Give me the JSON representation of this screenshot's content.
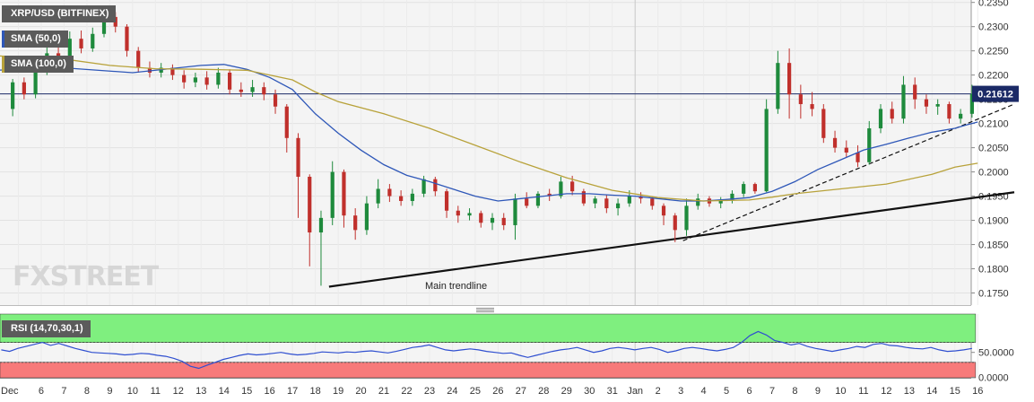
{
  "chart_data": {
    "type": "candlestick",
    "title": "XRP/USD (BITFINEX)",
    "ylim": [
      0.1725,
      0.2355
    ],
    "y_ticks": [
      "0.2350",
      "0.2300",
      "0.2250",
      "0.2200",
      "0.2150",
      "0.2100",
      "0.2050",
      "0.2000",
      "0.1950",
      "0.1900",
      "0.1850",
      "0.1800",
      "0.1750"
    ],
    "current_price": 0.21612,
    "current_price_label": "0.21612",
    "x_tick_labels": [
      "Dec",
      "6",
      "7",
      "8",
      "9",
      "10",
      "11",
      "12",
      "13",
      "14",
      "15",
      "16",
      "17",
      "18",
      "19",
      "20",
      "21",
      "22",
      "23",
      "24",
      "25",
      "26",
      "27",
      "28",
      "29",
      "30",
      "31",
      "Jan",
      "2",
      "3",
      "4",
      "5",
      "6",
      "7",
      "8",
      "9",
      "10",
      "11",
      "12",
      "13",
      "14",
      "15",
      "16"
    ],
    "x_dates": [
      "2019-12-05",
      "2019-12-06",
      "2019-12-07",
      "2019-12-08",
      "2019-12-09",
      "2019-12-10",
      "2019-12-11",
      "2019-12-12",
      "2019-12-13",
      "2019-12-14",
      "2019-12-15",
      "2019-12-16",
      "2019-12-17",
      "2019-12-18",
      "2019-12-19",
      "2019-12-20",
      "2019-12-21",
      "2019-12-22",
      "2019-12-23",
      "2019-12-24",
      "2019-12-25",
      "2019-12-26",
      "2019-12-27",
      "2019-12-28",
      "2019-12-29",
      "2019-12-30",
      "2019-12-31",
      "2020-01-01",
      "2020-01-02",
      "2020-01-03",
      "2020-01-04",
      "2020-01-05",
      "2020-01-06",
      "2020-01-07",
      "2020-01-08",
      "2020-01-09",
      "2020-01-10",
      "2020-01-11",
      "2020-01-12",
      "2020-01-13",
      "2020-01-14",
      "2020-01-15",
      "2020-01-16"
    ],
    "candles": [
      {
        "day": -0.25,
        "open": 0.213,
        "close": 0.2185,
        "high": 0.2192,
        "low": 0.2115
      },
      {
        "day": 0.25,
        "open": 0.2185,
        "close": 0.216,
        "high": 0.2195,
        "low": 0.215
      },
      {
        "day": 0.75,
        "open": 0.216,
        "close": 0.221,
        "high": 0.224,
        "low": 0.2152
      },
      {
        "day": 1.25,
        "open": 0.221,
        "close": 0.2245,
        "high": 0.2265,
        "low": 0.22
      },
      {
        "day": 1.75,
        "open": 0.2245,
        "close": 0.2225,
        "high": 0.2268,
        "low": 0.2215
      },
      {
        "day": 2.25,
        "open": 0.2225,
        "close": 0.2275,
        "high": 0.229,
        "low": 0.2218
      },
      {
        "day": 2.75,
        "open": 0.2275,
        "close": 0.2255,
        "high": 0.2292,
        "low": 0.2245
      },
      {
        "day": 3.25,
        "open": 0.2255,
        "close": 0.2285,
        "high": 0.2298,
        "low": 0.2248
      },
      {
        "day": 3.75,
        "open": 0.2285,
        "close": 0.232,
        "high": 0.234,
        "low": 0.2278
      },
      {
        "day": 4.25,
        "open": 0.232,
        "close": 0.23,
        "high": 0.233,
        "low": 0.2288
      },
      {
        "day": 4.75,
        "open": 0.23,
        "close": 0.225,
        "high": 0.2305,
        "low": 0.2238
      },
      {
        "day": 5.25,
        "open": 0.225,
        "close": 0.2215,
        "high": 0.2258,
        "low": 0.2205
      },
      {
        "day": 5.75,
        "open": 0.2215,
        "close": 0.2205,
        "high": 0.2228,
        "low": 0.2195
      },
      {
        "day": 6.25,
        "open": 0.2205,
        "close": 0.2215,
        "high": 0.2225,
        "low": 0.2195
      },
      {
        "day": 6.75,
        "open": 0.2215,
        "close": 0.22,
        "high": 0.2222,
        "low": 0.219
      },
      {
        "day": 7.25,
        "open": 0.22,
        "close": 0.2185,
        "high": 0.221,
        "low": 0.2172
      },
      {
        "day": 7.75,
        "open": 0.2185,
        "close": 0.2195,
        "high": 0.2205,
        "low": 0.2175
      },
      {
        "day": 8.25,
        "open": 0.2195,
        "close": 0.218,
        "high": 0.2208,
        "low": 0.217
      },
      {
        "day": 8.75,
        "open": 0.218,
        "close": 0.2205,
        "high": 0.2215,
        "low": 0.2172
      },
      {
        "day": 9.25,
        "open": 0.2205,
        "close": 0.217,
        "high": 0.2212,
        "low": 0.216
      },
      {
        "day": 9.75,
        "open": 0.217,
        "close": 0.2165,
        "high": 0.2185,
        "low": 0.2155
      },
      {
        "day": 10.25,
        "open": 0.2165,
        "close": 0.2175,
        "high": 0.219,
        "low": 0.2155
      },
      {
        "day": 10.75,
        "open": 0.2175,
        "close": 0.216,
        "high": 0.2185,
        "low": 0.2148
      },
      {
        "day": 11.25,
        "open": 0.216,
        "close": 0.2135,
        "high": 0.217,
        "low": 0.212
      },
      {
        "day": 11.75,
        "open": 0.2135,
        "close": 0.207,
        "high": 0.214,
        "low": 0.204
      },
      {
        "day": 12.25,
        "open": 0.207,
        "close": 0.199,
        "high": 0.208,
        "low": 0.1905
      },
      {
        "day": 12.75,
        "open": 0.199,
        "close": 0.1875,
        "high": 0.1995,
        "low": 0.1805
      },
      {
        "day": 13.25,
        "open": 0.1875,
        "close": 0.1905,
        "high": 0.192,
        "low": 0.1765
      },
      {
        "day": 13.75,
        "open": 0.1905,
        "close": 0.2,
        "high": 0.2022,
        "low": 0.189
      },
      {
        "day": 14.25,
        "open": 0.2,
        "close": 0.191,
        "high": 0.2005,
        "low": 0.1885
      },
      {
        "day": 14.75,
        "open": 0.191,
        "close": 0.188,
        "high": 0.1925,
        "low": 0.186
      },
      {
        "day": 15.25,
        "open": 0.188,
        "close": 0.1935,
        "high": 0.195,
        "low": 0.187
      },
      {
        "day": 15.75,
        "open": 0.1935,
        "close": 0.1965,
        "high": 0.1985,
        "low": 0.1925
      },
      {
        "day": 16.25,
        "open": 0.1965,
        "close": 0.195,
        "high": 0.1975,
        "low": 0.1938
      },
      {
        "day": 16.75,
        "open": 0.195,
        "close": 0.194,
        "high": 0.1962,
        "low": 0.193
      },
      {
        "day": 17.25,
        "open": 0.194,
        "close": 0.1955,
        "high": 0.1965,
        "low": 0.193
      },
      {
        "day": 17.75,
        "open": 0.1955,
        "close": 0.1985,
        "high": 0.1992,
        "low": 0.1948
      },
      {
        "day": 18.25,
        "open": 0.1985,
        "close": 0.196,
        "high": 0.199,
        "low": 0.195
      },
      {
        "day": 18.75,
        "open": 0.196,
        "close": 0.192,
        "high": 0.1965,
        "low": 0.1905
      },
      {
        "day": 19.25,
        "open": 0.192,
        "close": 0.191,
        "high": 0.193,
        "low": 0.1895
      },
      {
        "day": 19.75,
        "open": 0.191,
        "close": 0.1915,
        "high": 0.1925,
        "low": 0.19
      },
      {
        "day": 20.25,
        "open": 0.1915,
        "close": 0.1895,
        "high": 0.192,
        "low": 0.1885
      },
      {
        "day": 20.75,
        "open": 0.1895,
        "close": 0.1905,
        "high": 0.1915,
        "low": 0.188
      },
      {
        "day": 21.25,
        "open": 0.1905,
        "close": 0.189,
        "high": 0.1915,
        "low": 0.188
      },
      {
        "day": 21.75,
        "open": 0.189,
        "close": 0.1945,
        "high": 0.1955,
        "low": 0.186
      },
      {
        "day": 22.25,
        "open": 0.1945,
        "close": 0.193,
        "high": 0.1958,
        "low": 0.1925
      },
      {
        "day": 22.75,
        "open": 0.193,
        "close": 0.1955,
        "high": 0.196,
        "low": 0.1925
      },
      {
        "day": 23.25,
        "open": 0.1955,
        "close": 0.195,
        "high": 0.1965,
        "low": 0.194
      },
      {
        "day": 23.75,
        "open": 0.195,
        "close": 0.198,
        "high": 0.199,
        "low": 0.1945
      },
      {
        "day": 24.25,
        "open": 0.198,
        "close": 0.196,
        "high": 0.1992,
        "low": 0.1952
      },
      {
        "day": 24.75,
        "open": 0.196,
        "close": 0.1935,
        "high": 0.1965,
        "low": 0.193
      },
      {
        "day": 25.25,
        "open": 0.1935,
        "close": 0.1945,
        "high": 0.195,
        "low": 0.1925
      },
      {
        "day": 25.75,
        "open": 0.1945,
        "close": 0.1925,
        "high": 0.1952,
        "low": 0.1915
      },
      {
        "day": 26.25,
        "open": 0.1925,
        "close": 0.1935,
        "high": 0.1945,
        "low": 0.191
      },
      {
        "day": 26.75,
        "open": 0.1935,
        "close": 0.195,
        "high": 0.1962,
        "low": 0.1928
      },
      {
        "day": 27.25,
        "open": 0.195,
        "close": 0.1945,
        "high": 0.1958,
        "low": 0.1935
      },
      {
        "day": 27.75,
        "open": 0.1945,
        "close": 0.193,
        "high": 0.195,
        "low": 0.1922
      },
      {
        "day": 28.25,
        "open": 0.193,
        "close": 0.191,
        "high": 0.1935,
        "low": 0.189
      },
      {
        "day": 28.75,
        "open": 0.191,
        "close": 0.188,
        "high": 0.1915,
        "low": 0.1855
      },
      {
        "day": 29.25,
        "open": 0.188,
        "close": 0.193,
        "high": 0.1945,
        "low": 0.1868
      },
      {
        "day": 29.75,
        "open": 0.193,
        "close": 0.1945,
        "high": 0.1955,
        "low": 0.1922
      },
      {
        "day": 30.25,
        "open": 0.1945,
        "close": 0.1935,
        "high": 0.195,
        "low": 0.1928
      },
      {
        "day": 30.75,
        "open": 0.1935,
        "close": 0.1942,
        "high": 0.1948,
        "low": 0.1925
      },
      {
        "day": 31.25,
        "open": 0.1942,
        "close": 0.1955,
        "high": 0.1962,
        "low": 0.1935
      },
      {
        "day": 31.75,
        "open": 0.1955,
        "close": 0.1975,
        "high": 0.198,
        "low": 0.1948
      },
      {
        "day": 32.25,
        "open": 0.1975,
        "close": 0.196,
        "high": 0.1978,
        "low": 0.1955
      },
      {
        "day": 32.75,
        "open": 0.196,
        "close": 0.213,
        "high": 0.215,
        "low": 0.1958
      },
      {
        "day": 33.25,
        "open": 0.213,
        "close": 0.2225,
        "high": 0.225,
        "low": 0.212
      },
      {
        "day": 33.75,
        "open": 0.2225,
        "close": 0.216,
        "high": 0.2255,
        "low": 0.211
      },
      {
        "day": 34.25,
        "open": 0.216,
        "close": 0.214,
        "high": 0.218,
        "low": 0.211
      },
      {
        "day": 34.75,
        "open": 0.214,
        "close": 0.213,
        "high": 0.2165,
        "low": 0.2115
      },
      {
        "day": 35.25,
        "open": 0.213,
        "close": 0.207,
        "high": 0.214,
        "low": 0.206
      },
      {
        "day": 35.75,
        "open": 0.207,
        "close": 0.205,
        "high": 0.2085,
        "low": 0.204
      },
      {
        "day": 36.25,
        "open": 0.205,
        "close": 0.204,
        "high": 0.2065,
        "low": 0.203
      },
      {
        "day": 36.75,
        "open": 0.204,
        "close": 0.202,
        "high": 0.2055,
        "low": 0.201
      },
      {
        "day": 37.25,
        "open": 0.202,
        "close": 0.209,
        "high": 0.2105,
        "low": 0.2015
      },
      {
        "day": 37.75,
        "open": 0.209,
        "close": 0.213,
        "high": 0.214,
        "low": 0.208
      },
      {
        "day": 38.25,
        "open": 0.213,
        "close": 0.211,
        "high": 0.2145,
        "low": 0.21
      },
      {
        "day": 38.75,
        "open": 0.211,
        "close": 0.218,
        "high": 0.2198,
        "low": 0.21
      },
      {
        "day": 39.25,
        "open": 0.218,
        "close": 0.215,
        "high": 0.2195,
        "low": 0.213
      },
      {
        "day": 39.75,
        "open": 0.215,
        "close": 0.2135,
        "high": 0.216,
        "low": 0.212
      },
      {
        "day": 40.25,
        "open": 0.2135,
        "close": 0.214,
        "high": 0.215,
        "low": 0.2118
      },
      {
        "day": 40.75,
        "open": 0.214,
        "close": 0.211,
        "high": 0.2145,
        "low": 0.21
      },
      {
        "day": 41.25,
        "open": 0.211,
        "close": 0.212,
        "high": 0.213,
        "low": 0.21
      },
      {
        "day": 41.75,
        "open": 0.212,
        "close": 0.2161,
        "high": 0.218,
        "low": 0.2112
      }
    ],
    "series": [
      {
        "name": "SMA (50,0)",
        "color": "#2e57b8",
        "points": [
          [
            -1,
            0.221
          ],
          [
            2,
            0.2215
          ],
          [
            5,
            0.2205
          ],
          [
            8,
            0.222
          ],
          [
            9,
            0.2222
          ],
          [
            10,
            0.2212
          ],
          [
            11,
            0.2195
          ],
          [
            12,
            0.217
          ],
          [
            13,
            0.212
          ],
          [
            14,
            0.208
          ],
          [
            15,
            0.2045
          ],
          [
            16,
            0.2015
          ],
          [
            17,
            0.1993
          ],
          [
            18,
            0.198
          ],
          [
            19,
            0.1965
          ],
          [
            20,
            0.195
          ],
          [
            21,
            0.194
          ],
          [
            22,
            0.1945
          ],
          [
            23,
            0.195
          ],
          [
            24,
            0.1955
          ],
          [
            25,
            0.1955
          ],
          [
            26,
            0.1952
          ],
          [
            27,
            0.195
          ],
          [
            28,
            0.1945
          ],
          [
            29,
            0.194
          ],
          [
            30,
            0.194
          ],
          [
            31,
            0.1943
          ],
          [
            32,
            0.1947
          ],
          [
            33,
            0.196
          ],
          [
            34,
            0.198
          ],
          [
            35,
            0.2005
          ],
          [
            36,
            0.2025
          ],
          [
            37,
            0.2045
          ],
          [
            38,
            0.2057
          ],
          [
            39,
            0.207
          ],
          [
            40,
            0.2082
          ],
          [
            41,
            0.209
          ],
          [
            41.5,
            0.2097
          ],
          [
            42,
            0.2103
          ]
        ]
      },
      {
        "name": "SMA (100,0)",
        "color": "#b8a23a",
        "points": [
          [
            -1,
            0.224
          ],
          [
            2,
            0.2233
          ],
          [
            4,
            0.222
          ],
          [
            6,
            0.2213
          ],
          [
            8,
            0.2212
          ],
          [
            10,
            0.221
          ],
          [
            12,
            0.219
          ],
          [
            13,
            0.2165
          ],
          [
            14,
            0.2145
          ],
          [
            16,
            0.212
          ],
          [
            18,
            0.209
          ],
          [
            20,
            0.2055
          ],
          [
            22,
            0.202
          ],
          [
            24,
            0.1988
          ],
          [
            26,
            0.1962
          ],
          [
            28,
            0.1947
          ],
          [
            30,
            0.194
          ],
          [
            32,
            0.1942
          ],
          [
            33,
            0.1948
          ],
          [
            34,
            0.1955
          ],
          [
            36,
            0.1965
          ],
          [
            38,
            0.1975
          ],
          [
            39,
            0.1985
          ],
          [
            40,
            0.1995
          ],
          [
            41,
            0.201
          ],
          [
            42,
            0.2018
          ]
        ]
      }
    ],
    "trendlines": [
      {
        "label": "Main trendline",
        "style": "solid",
        "from": [
          13.6,
          0.1763
        ],
        "to": [
          43.6,
          0.1958
        ]
      },
      {
        "label": "",
        "style": "dashed",
        "from": [
          29.1,
          0.1858
        ],
        "to": [
          43.6,
          0.214
        ]
      }
    ],
    "rsi": {
      "label": "RSI (14,70,30,1)",
      "ylim": [
        -1.0,
        127.0
      ],
      "overbought": 70,
      "oversold": 30,
      "y_ticks": [
        "50.0000",
        "0.0000"
      ],
      "values": [
        55,
        52,
        58,
        62,
        66,
        70,
        64,
        68,
        63,
        58,
        54,
        50,
        49,
        48,
        47,
        45,
        46,
        48,
        47,
        44,
        42,
        38,
        32,
        22,
        18,
        24,
        30,
        36,
        40,
        44,
        47,
        45,
        46,
        48,
        50,
        47,
        45,
        46,
        48,
        51,
        50,
        49,
        51,
        50,
        52,
        53,
        51,
        49,
        52,
        56,
        60,
        62,
        65,
        60,
        55,
        53,
        55,
        57,
        55,
        52,
        50,
        48,
        49,
        44,
        40,
        44,
        48,
        52,
        55,
        57,
        60,
        55,
        50,
        53,
        58,
        60,
        58,
        55,
        58,
        60,
        56,
        50,
        53,
        58,
        60,
        58,
        55,
        53,
        56,
        60,
        70,
        84,
        92,
        85,
        74,
        70,
        65,
        68,
        62,
        58,
        55,
        52,
        55,
        58,
        62,
        60,
        66,
        68,
        64,
        63,
        60,
        58,
        57,
        60,
        55,
        52,
        53,
        55,
        58
      ]
    }
  },
  "legend": {
    "title": "XRP/USD (BITFINEX)",
    "sma50": "SMA (50,0)",
    "sma100": "SMA (100,0)",
    "rsi": "RSI (14,70,30,1)"
  },
  "annotation": {
    "main_trendline": "Main trendline"
  },
  "watermark": "FXSTREET",
  "colors": {
    "bull": "#1e8a3c",
    "bear": "#c0302c",
    "sma50": "#2e57b8",
    "sma100": "#b8a23a",
    "price_line": "#1b2a66",
    "rsi_line": "#2f4fd0",
    "rsi_overbought": "#7fef7f",
    "rsi_oversold": "#f77a7a"
  }
}
